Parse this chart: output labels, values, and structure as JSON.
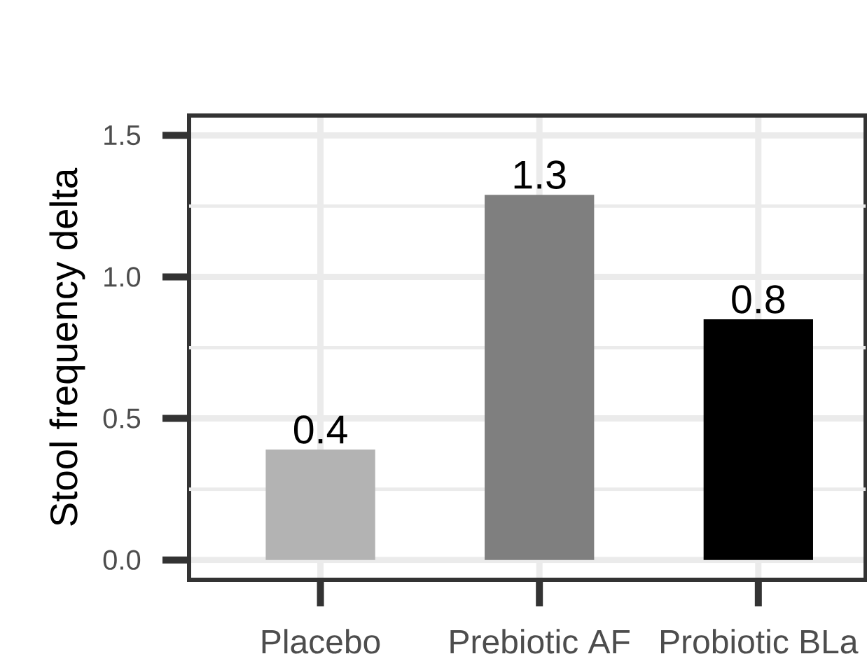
{
  "chart_data": {
    "type": "bar",
    "ylabel": "Stool frequency delta",
    "categories": [
      "Placebo",
      "Prebiotic AF",
      "Probiotic BLa"
    ],
    "values": [
      0.39,
      1.29,
      0.85
    ],
    "colors": [
      "#b3b3b3",
      "#7f7f7f",
      "#000000"
    ],
    "value_labels": [
      "0.4",
      "1.3",
      "0.8"
    ],
    "ylim": [
      -0.07,
      1.57
    ],
    "yticks": [
      {
        "value": 0,
        "label": "0.0"
      },
      {
        "value": 0.25,
        "label": null
      },
      {
        "value": 0.5,
        "label": "0.5"
      },
      {
        "value": 0.75,
        "label": null
      },
      {
        "value": 1,
        "label": "1.0"
      },
      {
        "value": 1.25,
        "label": null
      },
      {
        "value": 1.5,
        "label": "1.5"
      }
    ],
    "grid": true
  }
}
